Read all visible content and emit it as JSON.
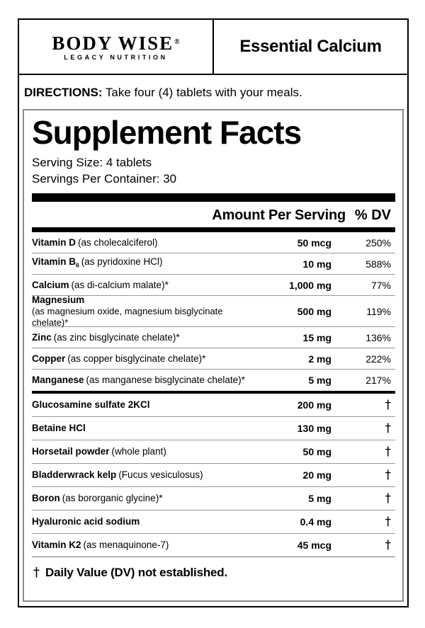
{
  "brand": {
    "name": "BODY WISE",
    "registered": "®",
    "tagline": "LEGACY NUTRITION"
  },
  "product": {
    "name": "Essential Calcium"
  },
  "directions": {
    "label": "DIRECTIONS:",
    "text": " Take four (4) tablets with your meals."
  },
  "facts": {
    "title": "Supplement Facts",
    "serving_size": "Serving Size: 4 tablets",
    "servings_per_container": "Servings Per Container: 30",
    "col_amount": "Amount Per Serving",
    "col_dv": "% DV",
    "rows_dv": [
      {
        "name": "Vitamin D",
        "desc": "(as cholecalciferol)",
        "amount": "50 mcg",
        "dv": "250%"
      },
      {
        "name": "Vitamin B",
        "sub": "6",
        "desc": "(as pyridoxine HCl)",
        "amount": "10 mg",
        "dv": "588%"
      },
      {
        "name": "Calcium",
        "desc": "(as di-calcium malate)*",
        "amount": "1,000 mg",
        "dv": "77%"
      },
      {
        "name": "Magnesium",
        "desc2": "(as magnesium oxide, magnesium bisglycinate chelate)*",
        "amount": "500 mg",
        "dv": "119%"
      },
      {
        "name": "Zinc",
        "desc": "(as zinc bisglycinate chelate)*",
        "amount": "15 mg",
        "dv": "136%"
      },
      {
        "name": "Copper",
        "desc": "(as copper bisglycinate chelate)*",
        "amount": "2 mg",
        "dv": "222%"
      },
      {
        "name": "Manganese",
        "desc": "(as manganese bisglycinate chelate)*",
        "amount": "5 mg",
        "dv": "217%"
      }
    ],
    "rows_no_dv": [
      {
        "name": "Glucosamine sulfate 2KCl",
        "amount": "200 mg",
        "dv": "†"
      },
      {
        "name": "Betaine HCl",
        "amount": "130 mg",
        "dv": "†"
      },
      {
        "name": "Horsetail powder",
        "desc": "(whole plant)",
        "amount": "50 mg",
        "dv": "†"
      },
      {
        "name": "Bladderwrack kelp",
        "desc": "(Fucus vesiculosus)",
        "amount": "20 mg",
        "dv": "†"
      },
      {
        "name": "Boron",
        "desc": "(as bororganic glycine)*",
        "amount": "5 mg",
        "dv": "†"
      },
      {
        "name": "Hyaluronic acid sodium",
        "amount": "0.4 mg",
        "dv": "†"
      },
      {
        "name": "Vitamin K2",
        "desc": "(as menaquinone-7)",
        "amount": "45 mcg",
        "dv": "†"
      }
    ],
    "footnote": {
      "dagger": "†",
      "text": "Daily Value (DV) not established."
    }
  },
  "colors": {
    "ink": "#000000",
    "row_separator": "#999999",
    "panel_border": "#8a8a8a",
    "background": "#ffffff"
  }
}
